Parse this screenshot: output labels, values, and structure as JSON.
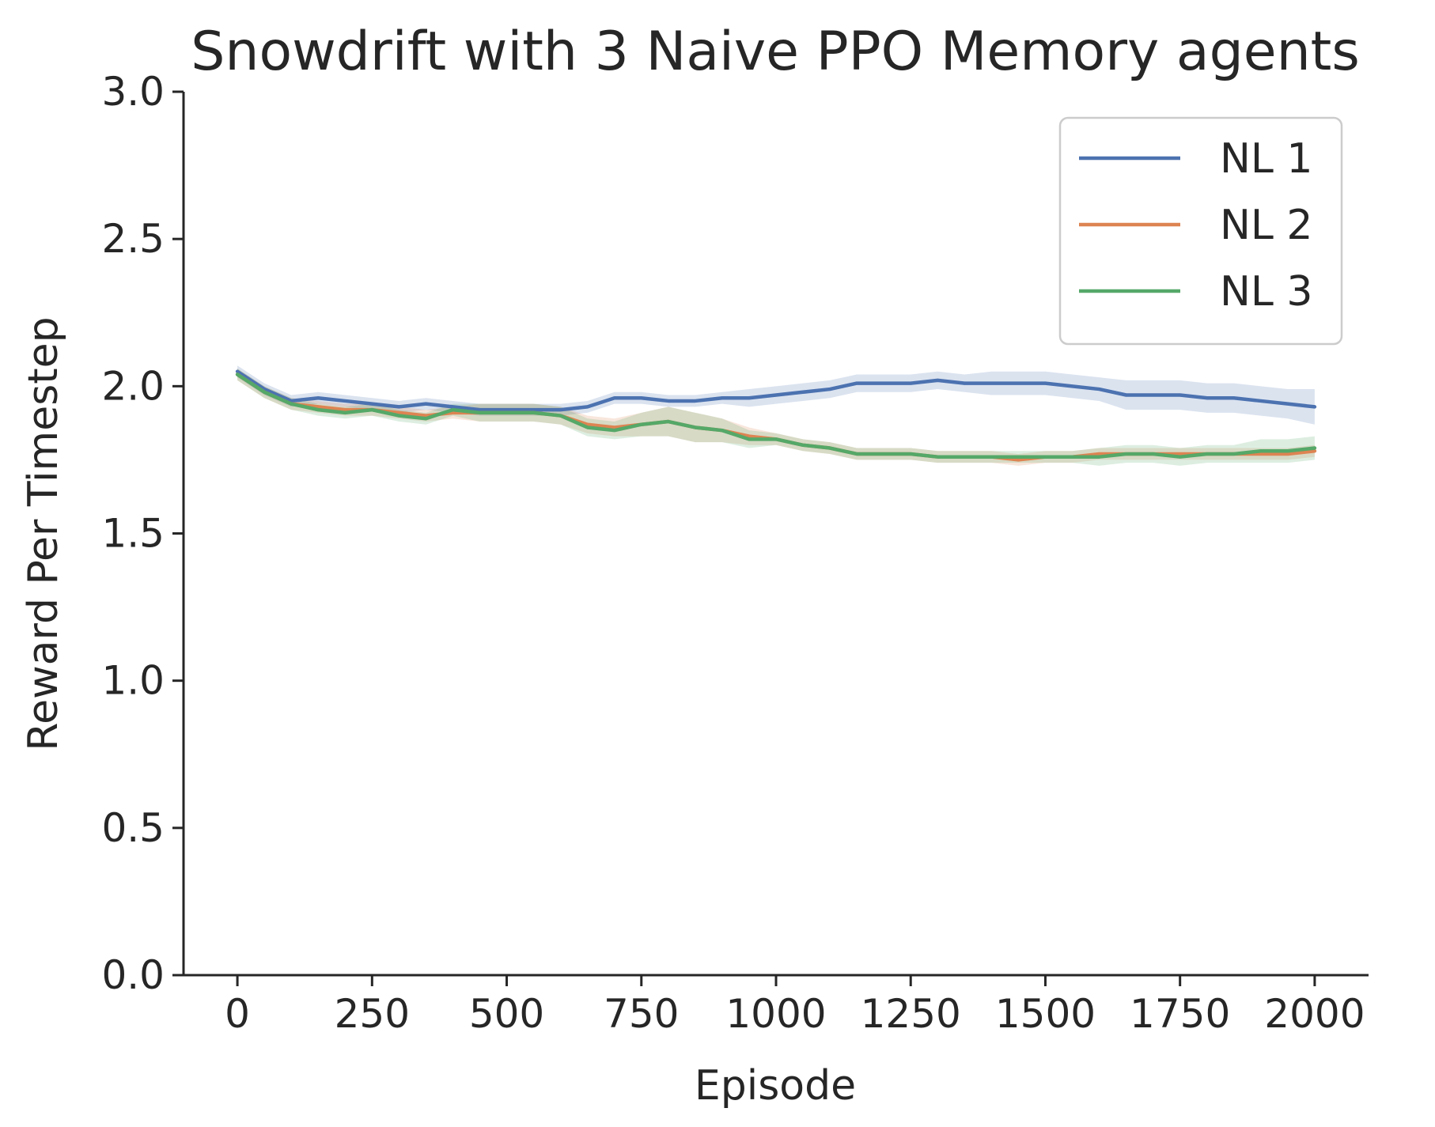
{
  "chart_data": {
    "type": "line",
    "title": "Snowdrift with 3 Naive PPO Memory agents",
    "xlabel": "Episode",
    "ylabel": "Reward Per Timestep",
    "xlim": [
      -100,
      2100
    ],
    "ylim": [
      0.0,
      3.0
    ],
    "xticks": [
      0,
      250,
      500,
      750,
      1000,
      1250,
      1500,
      1750,
      2000
    ],
    "xtick_labels": [
      "0",
      "250",
      "500",
      "750",
      "1000",
      "1250",
      "1500",
      "1750",
      "2000"
    ],
    "yticks": [
      0.0,
      0.5,
      1.0,
      1.5,
      2.0,
      2.5,
      3.0
    ],
    "ytick_labels": [
      "0.0",
      "0.5",
      "1.0",
      "1.5",
      "2.0",
      "2.5",
      "3.0"
    ],
    "grid": false,
    "legend_position": "top-right",
    "x": [
      0,
      50,
      100,
      150,
      200,
      250,
      300,
      350,
      400,
      450,
      500,
      550,
      600,
      650,
      700,
      750,
      800,
      850,
      900,
      950,
      1000,
      1050,
      1100,
      1150,
      1200,
      1250,
      1300,
      1350,
      1400,
      1450,
      1500,
      1550,
      1600,
      1650,
      1700,
      1750,
      1800,
      1850,
      1900,
      1950,
      2000
    ],
    "series": [
      {
        "name": "NL 1",
        "color": "#4c72b0",
        "values": [
          2.05,
          1.99,
          1.95,
          1.96,
          1.95,
          1.94,
          1.93,
          1.94,
          1.93,
          1.92,
          1.92,
          1.92,
          1.92,
          1.93,
          1.96,
          1.96,
          1.95,
          1.95,
          1.96,
          1.96,
          1.97,
          1.98,
          1.99,
          2.01,
          2.01,
          2.01,
          2.02,
          2.01,
          2.01,
          2.01,
          2.01,
          2.0,
          1.99,
          1.97,
          1.97,
          1.97,
          1.96,
          1.96,
          1.95,
          1.94,
          1.93
        ],
        "band": [
          0.02,
          0.02,
          0.02,
          0.02,
          0.02,
          0.02,
          0.02,
          0.02,
          0.02,
          0.02,
          0.02,
          0.02,
          0.02,
          0.02,
          0.02,
          0.02,
          0.02,
          0.02,
          0.02,
          0.03,
          0.03,
          0.03,
          0.03,
          0.03,
          0.03,
          0.03,
          0.03,
          0.03,
          0.04,
          0.04,
          0.04,
          0.04,
          0.04,
          0.05,
          0.05,
          0.05,
          0.05,
          0.05,
          0.05,
          0.05,
          0.06
        ]
      },
      {
        "name": "NL 2",
        "color": "#dd8452",
        "values": [
          2.04,
          1.98,
          1.94,
          1.93,
          1.92,
          1.92,
          1.91,
          1.9,
          1.91,
          1.91,
          1.91,
          1.91,
          1.9,
          1.87,
          1.86,
          1.87,
          1.88,
          1.86,
          1.85,
          1.83,
          1.82,
          1.8,
          1.79,
          1.77,
          1.77,
          1.77,
          1.76,
          1.76,
          1.76,
          1.75,
          1.76,
          1.76,
          1.77,
          1.77,
          1.77,
          1.77,
          1.77,
          1.77,
          1.77,
          1.77,
          1.78
        ],
        "band": [
          0.02,
          0.02,
          0.02,
          0.02,
          0.02,
          0.02,
          0.02,
          0.02,
          0.02,
          0.03,
          0.03,
          0.03,
          0.03,
          0.03,
          0.03,
          0.04,
          0.05,
          0.05,
          0.04,
          0.03,
          0.02,
          0.02,
          0.02,
          0.02,
          0.02,
          0.02,
          0.02,
          0.02,
          0.02,
          0.02,
          0.02,
          0.02,
          0.02,
          0.02,
          0.02,
          0.02,
          0.02,
          0.02,
          0.02,
          0.02,
          0.02
        ]
      },
      {
        "name": "NL 3",
        "color": "#55a868",
        "values": [
          2.04,
          1.98,
          1.94,
          1.92,
          1.91,
          1.92,
          1.9,
          1.89,
          1.92,
          1.91,
          1.91,
          1.91,
          1.9,
          1.86,
          1.85,
          1.87,
          1.88,
          1.86,
          1.85,
          1.82,
          1.82,
          1.8,
          1.79,
          1.77,
          1.77,
          1.77,
          1.76,
          1.76,
          1.76,
          1.76,
          1.76,
          1.76,
          1.76,
          1.77,
          1.77,
          1.76,
          1.77,
          1.77,
          1.78,
          1.78,
          1.79
        ],
        "band": [
          0.02,
          0.02,
          0.02,
          0.02,
          0.02,
          0.02,
          0.02,
          0.02,
          0.02,
          0.03,
          0.03,
          0.03,
          0.03,
          0.03,
          0.03,
          0.04,
          0.05,
          0.05,
          0.04,
          0.03,
          0.02,
          0.02,
          0.02,
          0.02,
          0.02,
          0.02,
          0.02,
          0.02,
          0.02,
          0.02,
          0.02,
          0.02,
          0.03,
          0.03,
          0.03,
          0.03,
          0.03,
          0.03,
          0.04,
          0.04,
          0.04
        ]
      }
    ]
  }
}
